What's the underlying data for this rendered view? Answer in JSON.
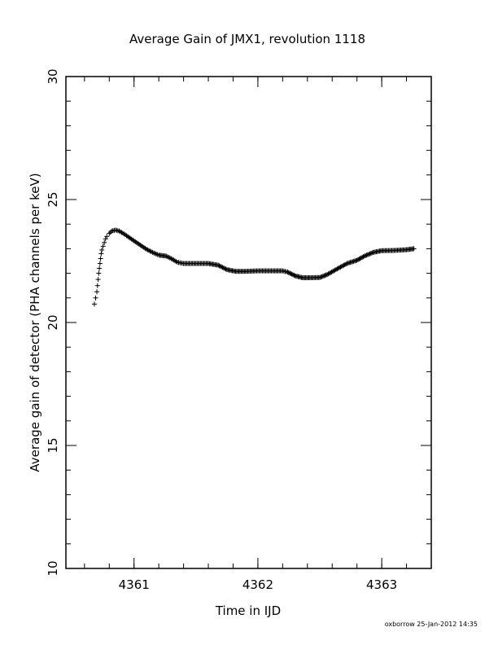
{
  "chart_data": {
    "type": "scatter",
    "title": "Average Gain of JMX1, revolution 1118",
    "xlabel": "Time in IJD",
    "ylabel": "Average gain of detector (PHA channels per keV)",
    "xlim": [
      4360.45,
      4363.4
    ],
    "ylim": [
      10,
      30
    ],
    "x_ticks": [
      4361,
      4362,
      4363
    ],
    "y_ticks": [
      10,
      15,
      20,
      25,
      30
    ],
    "x_minor_step": 0.2,
    "y_minor_step": 1,
    "grid": false,
    "marker": "+",
    "series": [
      {
        "points": [
          [
            4360.68,
            20.75
          ],
          [
            4360.69,
            21.0
          ],
          [
            4360.7,
            21.25
          ],
          [
            4360.705,
            21.5
          ],
          [
            4360.71,
            21.75
          ],
          [
            4360.715,
            22.0
          ],
          [
            4360.72,
            22.2
          ],
          [
            4360.725,
            22.4
          ],
          [
            4360.73,
            22.6
          ],
          [
            4360.735,
            22.8
          ],
          [
            4360.74,
            22.95
          ],
          [
            4360.75,
            23.1
          ],
          [
            4360.76,
            23.25
          ],
          [
            4360.77,
            23.4
          ],
          [
            4360.78,
            23.5
          ],
          [
            4360.8,
            23.62
          ],
          [
            4360.82,
            23.72
          ],
          [
            4360.85,
            23.76
          ],
          [
            4360.88,
            23.72
          ],
          [
            4360.92,
            23.6
          ],
          [
            4360.96,
            23.46
          ],
          [
            4361.0,
            23.32
          ],
          [
            4361.05,
            23.15
          ],
          [
            4361.1,
            22.98
          ],
          [
            4361.15,
            22.85
          ],
          [
            4361.2,
            22.74
          ],
          [
            4361.26,
            22.7
          ],
          [
            4361.3,
            22.6
          ],
          [
            4361.35,
            22.45
          ],
          [
            4361.4,
            22.4
          ],
          [
            4361.5,
            22.4
          ],
          [
            4361.6,
            22.4
          ],
          [
            4361.68,
            22.33
          ],
          [
            4361.75,
            22.15
          ],
          [
            4361.82,
            22.08
          ],
          [
            4361.9,
            22.08
          ],
          [
            4362.0,
            22.1
          ],
          [
            4362.1,
            22.1
          ],
          [
            4362.2,
            22.1
          ],
          [
            4362.24,
            22.05
          ],
          [
            4362.3,
            21.9
          ],
          [
            4362.36,
            21.82
          ],
          [
            4362.42,
            21.82
          ],
          [
            4362.5,
            21.83
          ],
          [
            4362.56,
            21.95
          ],
          [
            4362.64,
            22.18
          ],
          [
            4362.72,
            22.4
          ],
          [
            4362.8,
            22.53
          ],
          [
            4362.86,
            22.7
          ],
          [
            4362.93,
            22.85
          ],
          [
            4363.0,
            22.92
          ],
          [
            4363.1,
            22.93
          ],
          [
            4363.2,
            22.96
          ],
          [
            4363.26,
            23.0
          ]
        ]
      }
    ],
    "footer_note": "oxborrow 25-Jan-2012 14:35"
  }
}
